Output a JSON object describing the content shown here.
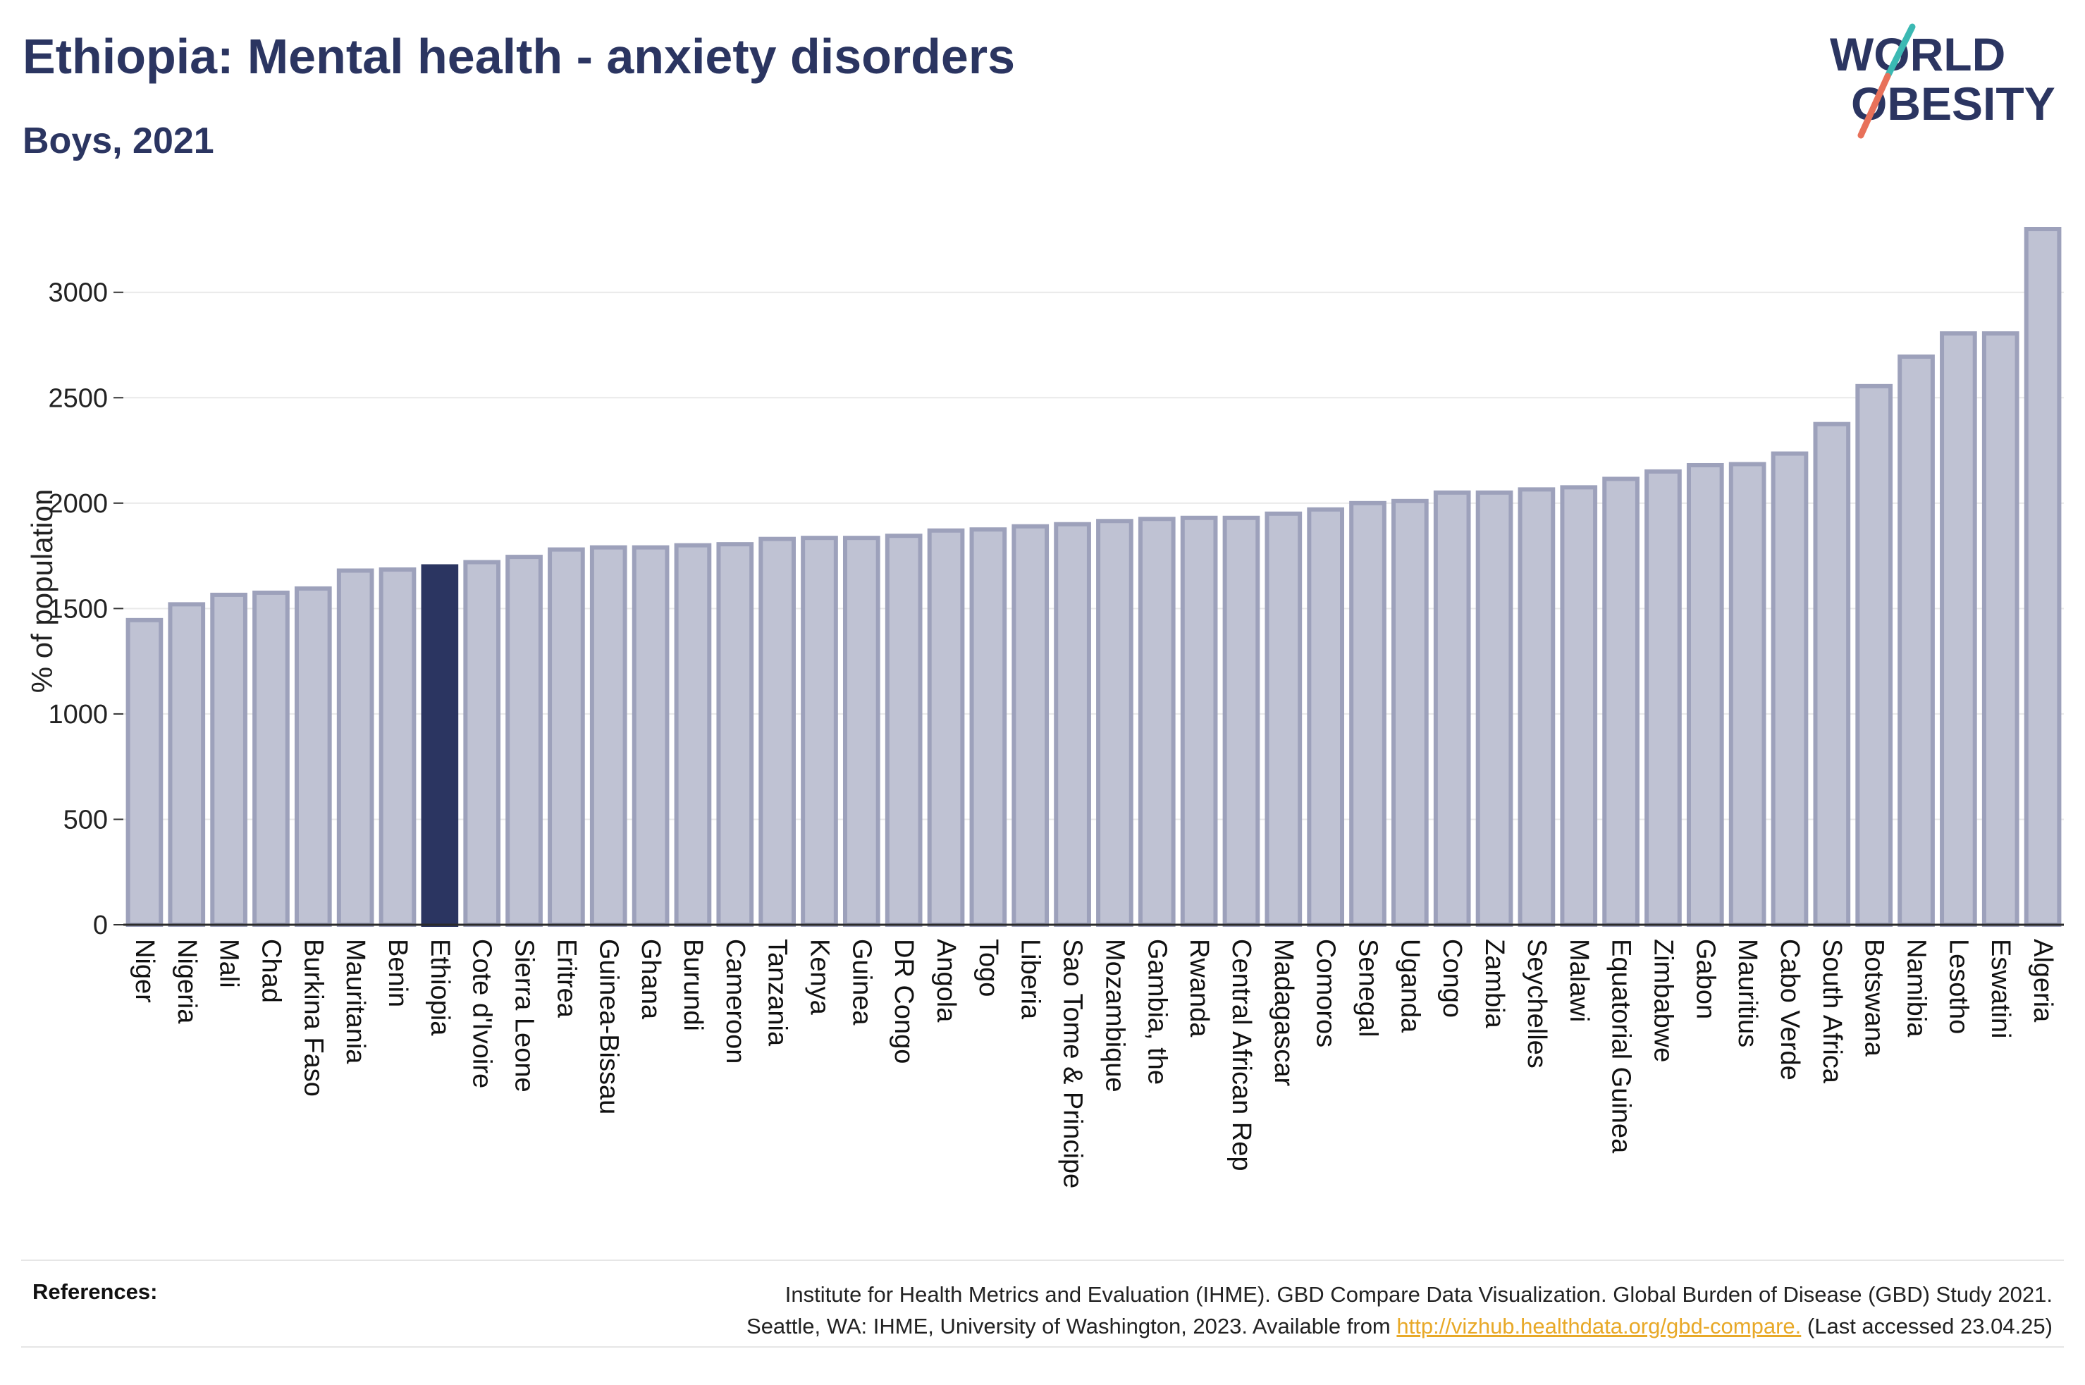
{
  "title": "Ethiopia: Mental health - anxiety disorders",
  "subtitle": "Boys, 2021",
  "logo": {
    "line1": "WORLD",
    "line2": "OBESITY",
    "icon": "slash-logo-icon"
  },
  "colors": {
    "bar": "#bfc2d3",
    "bar_border": "#9da1bb",
    "highlight": "#2b3561",
    "text": "#2b3561",
    "grid": "#e9e9e9",
    "logo_teal": "#3bb9b3",
    "logo_coral": "#e8715a",
    "link": "#e8a928"
  },
  "chart_data": {
    "type": "bar",
    "ylabel": "% of population",
    "ylim": [
      0,
      3300
    ],
    "yticks": [
      0,
      500,
      1000,
      1500,
      2000,
      2500,
      3000
    ],
    "highlight": "Ethiopia",
    "grid": true,
    "categories": [
      "Niger",
      "Nigeria",
      "Mali",
      "Chad",
      "Burkina Faso",
      "Mauritania",
      "Benin",
      "Ethiopia",
      "Cote d'Ivoire",
      "Sierra Leone",
      "Eritrea",
      "Guinea-Bissau",
      "Ghana",
      "Burundi",
      "Cameroon",
      "Tanzania",
      "Kenya",
      "Guinea",
      "DR Congo",
      "Angola",
      "Togo",
      "Liberia",
      "Sao Tome & Principe",
      "Mozambique",
      "Gambia, the",
      "Rwanda",
      "Central African Rep",
      "Madagascar",
      "Comoros",
      "Senegal",
      "Uganda",
      "Congo",
      "Zambia",
      "Seychelles",
      "Malawi",
      "Equatorial Guinea",
      "Zimbabwe",
      "Gabon",
      "Mauritius",
      "Cabo Verde",
      "South Africa",
      "Botswana",
      "Namibia",
      "Lesotho",
      "Eswatini",
      "Algeria"
    ],
    "values": [
      1445,
      1520,
      1565,
      1575,
      1595,
      1680,
      1685,
      1700,
      1720,
      1745,
      1780,
      1790,
      1790,
      1800,
      1805,
      1830,
      1835,
      1835,
      1845,
      1870,
      1875,
      1890,
      1900,
      1915,
      1925,
      1930,
      1930,
      1950,
      1970,
      2000,
      2010,
      2050,
      2050,
      2065,
      2075,
      2115,
      2150,
      2180,
      2185,
      2235,
      2375,
      2555,
      2695,
      2805,
      2805,
      3300
    ]
  },
  "references": {
    "label": "References:",
    "line1": "Institute for Health Metrics and Evaluation (IHME). GBD Compare Data Visualization. Global Burden of Disease (GBD) Study 2021.",
    "line2_before": "Seattle, WA: IHME, University of Washington, 2023. Available from",
    "link": "http://vizhub.healthdata.org/gbd-compare.",
    "line2_after": "(Last accessed 23.04.25)"
  }
}
